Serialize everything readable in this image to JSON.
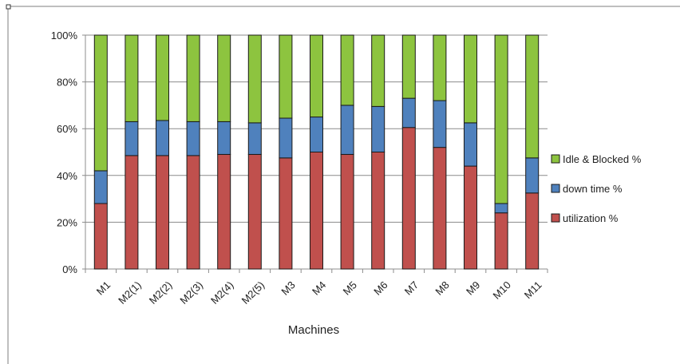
{
  "chart_data": {
    "type": "bar",
    "stacked": true,
    "percent": true,
    "categories": [
      "M1",
      "M2(1)",
      "M2(2)",
      "M2(3)",
      "M2(4)",
      "M2(5)",
      "M3",
      "M4",
      "M5",
      "M6",
      "M7",
      "M8",
      "M9",
      "M10",
      "M11"
    ],
    "series": [
      {
        "name": "utilization %",
        "color": "#c0504d",
        "values": [
          28,
          48.5,
          48.5,
          48.5,
          49,
          49,
          47.5,
          50,
          49,
          50,
          60.5,
          52,
          44,
          24,
          32.5
        ]
      },
      {
        "name": "down time %",
        "color": "#4f81bd",
        "values": [
          14,
          14.5,
          15,
          14.5,
          14,
          13.5,
          17,
          15,
          21,
          19.5,
          12.5,
          20,
          18.5,
          4,
          15
        ]
      },
      {
        "name": "Idle & Blocked %",
        "color": "#8dc43f",
        "values": [
          58,
          37,
          36.5,
          37,
          37,
          37.5,
          35.5,
          35,
          30,
          30.5,
          27,
          28,
          37.5,
          72,
          52.5
        ]
      }
    ],
    "yticks": [
      "0%",
      "20%",
      "40%",
      "60%",
      "80%",
      "100%"
    ],
    "ylim": [
      0,
      100
    ],
    "xlabel": "Machines",
    "ylabel": "",
    "grid": true,
    "legend_position": "right",
    "legend_order": [
      "Idle & Blocked %",
      "down time %",
      "utilization %"
    ]
  }
}
